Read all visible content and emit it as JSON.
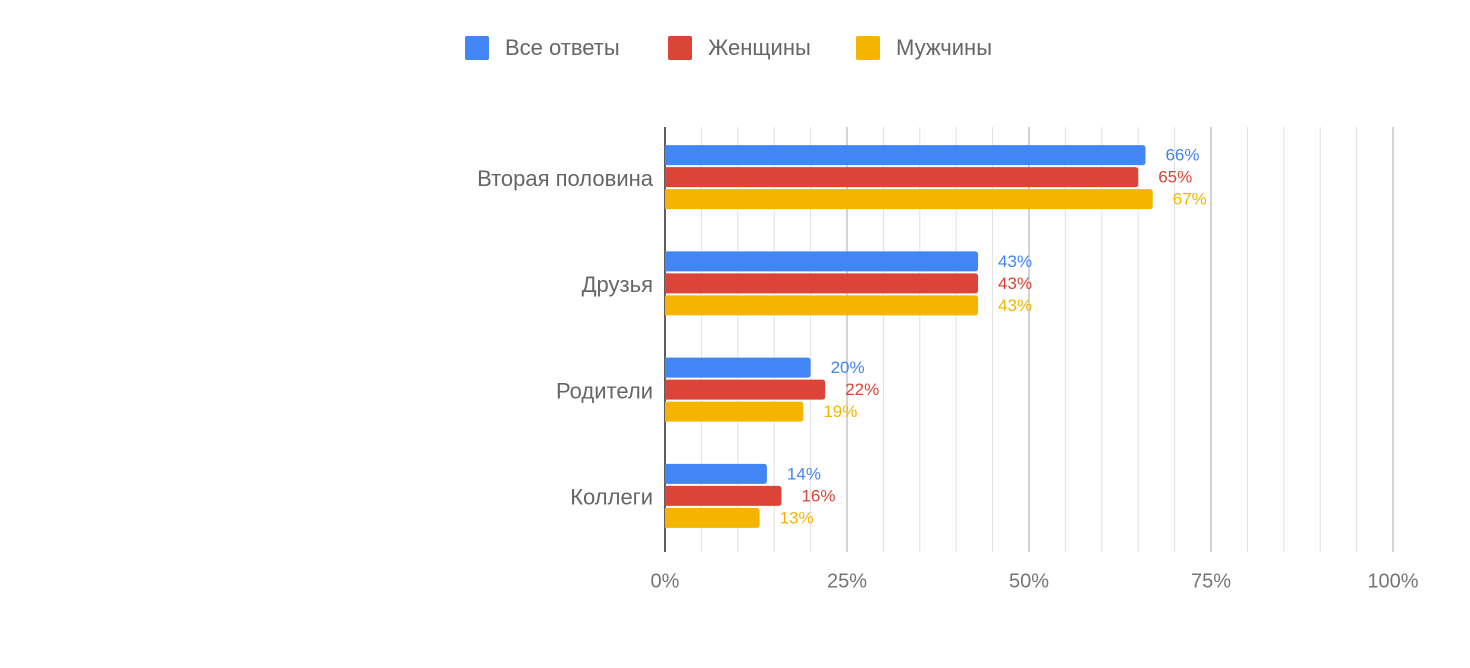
{
  "chart_data": {
    "type": "hbar",
    "categories": [
      "Вторая половина",
      "Друзья",
      "Родители",
      "Коллеги"
    ],
    "series": [
      {
        "name": "Все ответы",
        "color": "#4285f4",
        "values": [
          66,
          43,
          20,
          14
        ],
        "value_labels": [
          "66%",
          "43%",
          "20%",
          "14%"
        ]
      },
      {
        "name": "Женщины",
        "color": "#db4437",
        "values": [
          65,
          43,
          22,
          16
        ],
        "value_labels": [
          "65%",
          "43%",
          "22%",
          "16%"
        ]
      },
      {
        "name": "Мужчины",
        "color": "#f4b400",
        "values": [
          67,
          43,
          19,
          13
        ],
        "value_labels": [
          "67%",
          "43%",
          "19%",
          "13%"
        ]
      }
    ],
    "xlim": [
      0,
      100
    ],
    "xticks": [
      {
        "value": 0,
        "label": "0%"
      },
      {
        "value": 25,
        "label": "25%"
      },
      {
        "value": 50,
        "label": "50%"
      },
      {
        "value": 75,
        "label": "75%"
      },
      {
        "value": 100,
        "label": "100%"
      }
    ],
    "x_minor_ticks": [
      5,
      10,
      15,
      20,
      30,
      35,
      40,
      45,
      55,
      60,
      65,
      70,
      80,
      85,
      90,
      95
    ],
    "grid": true,
    "legend": "top"
  }
}
